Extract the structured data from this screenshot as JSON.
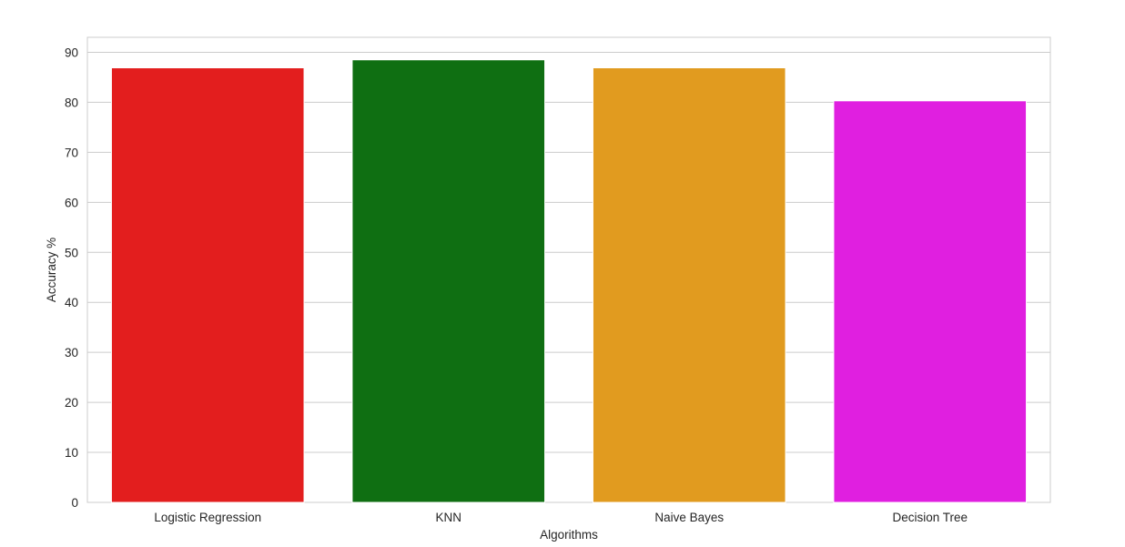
{
  "chart_data": {
    "type": "bar",
    "categories": [
      "Logistic Regression",
      "KNN",
      "Naive Bayes",
      "Decision Tree"
    ],
    "values": [
      86.9,
      88.5,
      86.9,
      80.3
    ],
    "colors": [
      "#e31e1e",
      "#0f6f12",
      "#e19b1f",
      "#e01fe0"
    ],
    "title": "",
    "xlabel": "Algorithms",
    "ylabel": "Accuracy %",
    "ylim": [
      0,
      93
    ],
    "yticks": [
      0,
      10,
      20,
      30,
      40,
      50,
      60,
      70,
      80,
      90
    ],
    "grid": true,
    "style": "whitegrid"
  }
}
